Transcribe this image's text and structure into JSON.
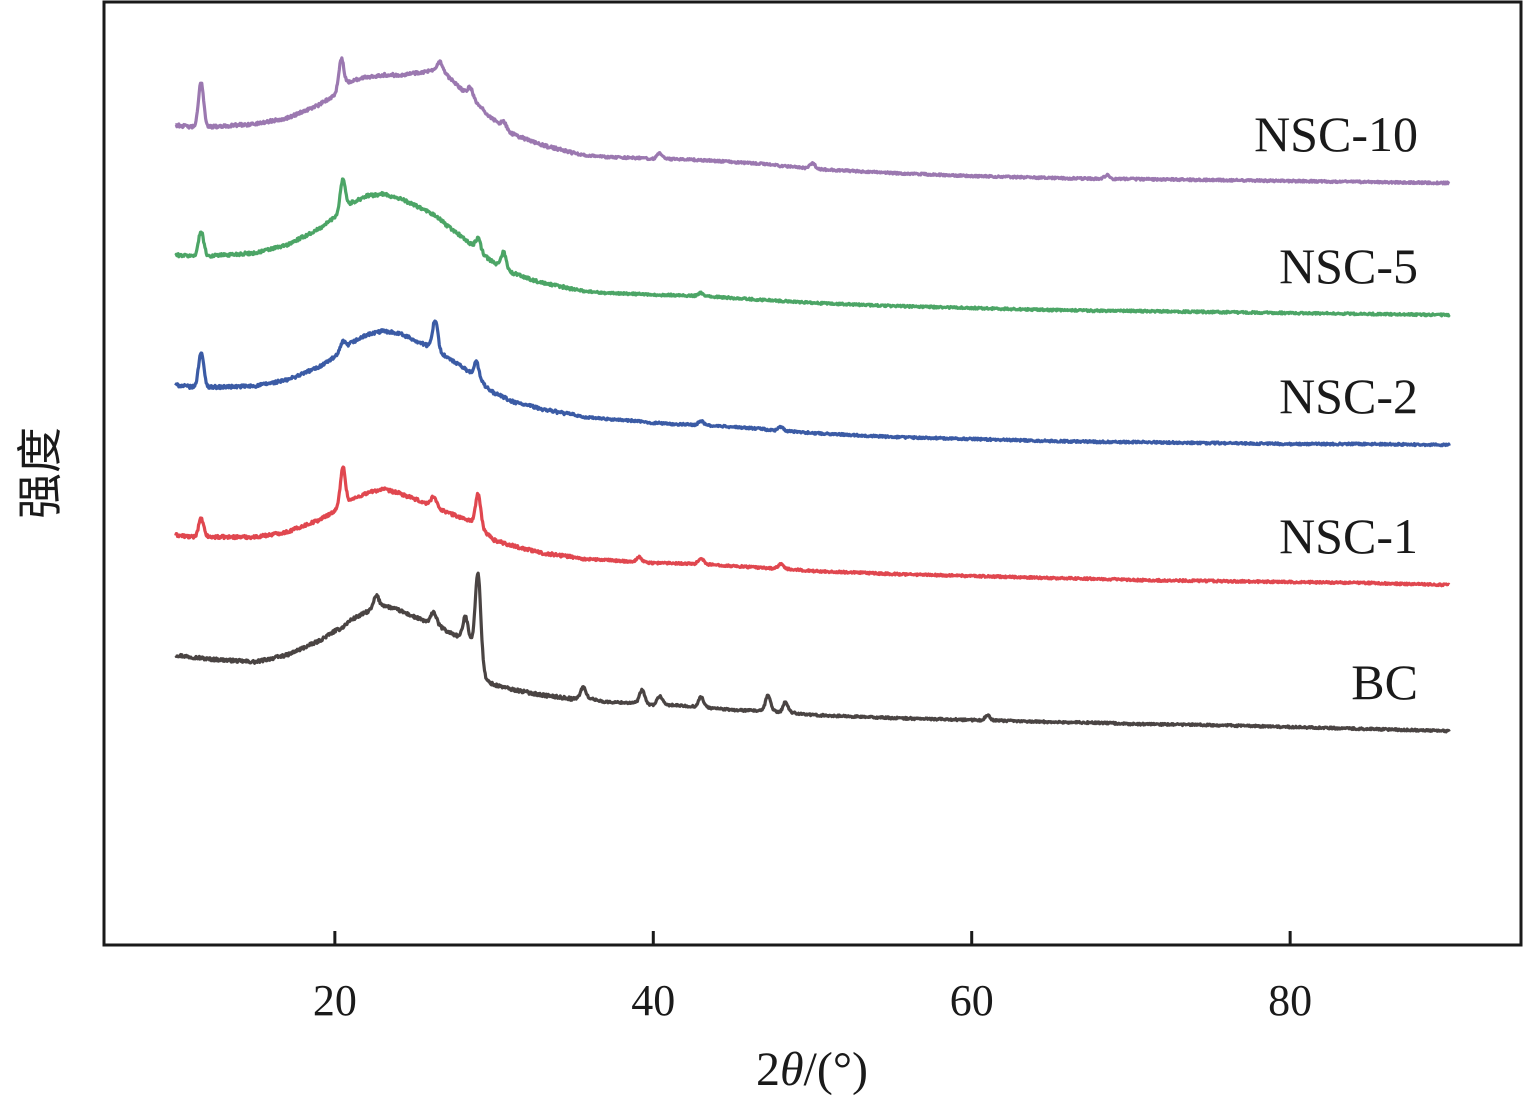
{
  "chart_data": {
    "type": "line",
    "title": "",
    "xlabel_parts": {
      "prefix": "2",
      "symbol": "θ",
      "suffix": "/(°)"
    },
    "ylabel": "强度",
    "xlim": [
      5.5,
      94.5
    ],
    "xticks": [
      20,
      40,
      60,
      80
    ],
    "x_tick_labels": [
      "20",
      "40",
      "60",
      "80"
    ],
    "yticks_shown": false,
    "grid": false,
    "legend": "inline-right",
    "x": [
      10,
      11,
      11.6,
      12,
      13,
      15,
      17,
      19,
      20,
      20.3,
      20.5,
      21,
      22,
      23,
      24,
      25,
      26,
      26.5,
      27,
      28,
      28.9,
      29.5,
      30,
      30.6,
      31,
      33,
      35,
      35.6,
      37,
      39,
      39.3,
      40,
      40.4,
      41,
      43,
      45,
      47,
      47.2,
      48,
      48.3,
      50,
      55,
      60,
      65,
      68.5,
      70,
      75,
      80,
      85,
      90
    ],
    "series": [
      {
        "name": "BC",
        "color": "#4a4443",
        "values": [
          -180,
          -182,
          -183,
          -184,
          -185,
          -187,
          -180,
          -166,
          -156,
          -154,
          -152,
          -145,
          -137,
          -130,
          -135,
          -142,
          -148,
          -150,
          -156,
          -163,
          -167,
          -205,
          -210,
          -212,
          -214,
          -220,
          -224,
          -222,
          -227,
          -228,
          -229,
          -230,
          -229,
          -230,
          -232,
          -235,
          -236,
          -234,
          -238,
          -237,
          -240,
          -243,
          -245,
          -247,
          -248,
          -249,
          -250,
          -252,
          -254,
          -256
        ],
        "spikes": [
          [
            22.6,
            12
          ],
          [
            26.2,
            12
          ],
          [
            28.2,
            22
          ],
          [
            29.0,
            75
          ],
          [
            35.6,
            10
          ],
          [
            39.3,
            14
          ],
          [
            40.4,
            8
          ],
          [
            43.0,
            10
          ],
          [
            47.2,
            14
          ],
          [
            48.3,
            10
          ],
          [
            61,
            5
          ]
        ]
      },
      {
        "name": "NSC-1",
        "color": "#e0474f",
        "values": [
          -60,
          -62,
          -62,
          -62,
          -62,
          -62,
          -57,
          -45,
          -36,
          -34,
          -32,
          -25,
          -18,
          -14,
          -18,
          -24,
          -30,
          -33,
          -37,
          -43,
          -48,
          -58,
          -65,
          -68,
          -70,
          -78,
          -82,
          -84,
          -85,
          -87,
          -87,
          -88,
          -88,
          -88,
          -89,
          -91,
          -93,
          -93,
          -94,
          -94,
          -96,
          -99,
          -101,
          -103,
          -104,
          -105,
          -106,
          -107,
          -108,
          -110
        ],
        "spikes": [
          [
            11.6,
            18
          ],
          [
            20.5,
            40
          ],
          [
            26.2,
            10
          ],
          [
            29.0,
            30
          ],
          [
            39.1,
            5
          ],
          [
            43.0,
            6
          ],
          [
            48.0,
            5
          ]
        ]
      },
      {
        "name": "NSC-2",
        "color": "#3b5ba5",
        "values": [
          90,
          88,
          88,
          88,
          88,
          89,
          95,
          108,
          118,
          121,
          123,
          132,
          140,
          144,
          142,
          135,
          128,
          124,
          118,
          108,
          98,
          88,
          82,
          78,
          74,
          66,
          60,
          58,
          56,
          54,
          53,
          52,
          52,
          51,
          50,
          48,
          46,
          45,
          44,
          44,
          42,
          38,
          36,
          34,
          33,
          33,
          32,
          31,
          31,
          30
        ],
        "spikes": [
          [
            11.6,
            35
          ],
          [
            20.5,
            10
          ],
          [
            26.3,
            30
          ],
          [
            28.9,
            15
          ],
          [
            43,
            4
          ],
          [
            48,
            4
          ]
        ]
      },
      {
        "name": "NSC-5",
        "color": "#4ca566",
        "values": [
          220,
          219,
          219,
          219,
          220,
          222,
          230,
          246,
          258,
          262,
          264,
          272,
          279,
          281,
          277,
          270,
          262,
          257,
          250,
          238,
          226,
          218,
          212,
          208,
          203,
          192,
          186,
          184,
          182,
          181,
          181,
          180,
          180,
          180,
          179,
          177,
          175,
          175,
          174,
          174,
          172,
          169,
          167,
          165,
          164,
          164,
          163,
          162,
          161,
          160
        ],
        "spikes": [
          [
            11.6,
            25
          ],
          [
            20.5,
            32
          ],
          [
            29.0,
            12
          ],
          [
            30.6,
            15
          ],
          [
            43,
            3
          ]
        ]
      },
      {
        "name": "NSC-10",
        "color": "#9b78b0",
        "values": [
          350,
          348,
          348,
          348,
          349,
          351,
          357,
          370,
          380,
          384,
          388,
          394,
          398,
          400,
          400,
          402,
          404,
          404,
          400,
          385,
          372,
          362,
          355,
          346,
          342,
          330,
          322,
          320,
          318,
          317,
          317,
          316,
          316,
          316,
          315,
          313,
          311,
          311,
          309,
          309,
          306,
          302,
          299,
          297,
          296,
          296,
          295,
          294,
          293,
          292
        ],
        "spikes": [
          [
            11.6,
            45
          ],
          [
            20.4,
            30
          ],
          [
            26.6,
            10
          ],
          [
            28.5,
            10
          ],
          [
            30.6,
            8
          ],
          [
            40.4,
            6
          ],
          [
            50,
            6
          ],
          [
            68.5,
            4
          ]
        ]
      }
    ]
  }
}
